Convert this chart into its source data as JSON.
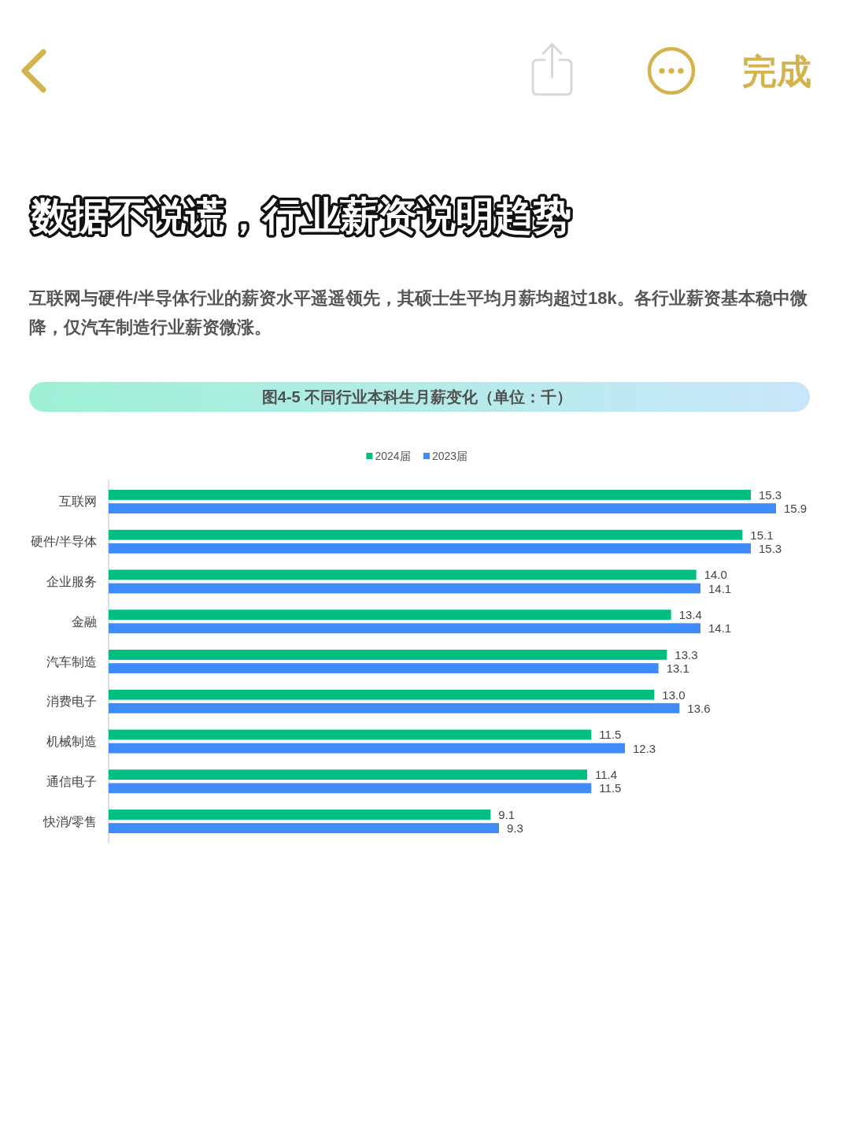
{
  "chart_data": {
    "type": "bar",
    "orientation": "horizontal",
    "title": "图4-5 不同行业本科生月薪变化（单位：千）",
    "annotations": [
      "数据不说谎，行业薪资说明趋势",
      "互联网与硬件/半导体行业的薪资水平遥遥领先，其硕士生平均月薪均超过18k。各行业薪资基本稳中微降，仅汽车制造行业薪资微涨。",
      "完成"
    ],
    "categories": [
      "互联网",
      "硬件/半导体",
      "企业服务",
      "金融",
      "汽车制造",
      "消费电子",
      "机械制造",
      "通信电子",
      "快消/零售"
    ],
    "series": [
      {
        "name": "2024届",
        "color": "#00be82",
        "values": [
          15.3,
          15.1,
          14.0,
          13.4,
          13.3,
          13.0,
          11.5,
          11.4,
          9.1
        ],
        "value_labels": [
          "15.3",
          "15.1",
          "14.0",
          "13.4",
          "13.3",
          "13.0",
          "11.5",
          "11.4",
          "9.1"
        ]
      },
      {
        "name": "2023届",
        "color": "#3f8bf9",
        "values": [
          15.9,
          15.3,
          14.1,
          14.1,
          13.1,
          13.6,
          12.3,
          11.5,
          9.3
        ],
        "value_labels": [
          "15.9",
          "15.3",
          "14.1",
          "14.1",
          "13.1",
          "13.6",
          "12.3",
          "11.5",
          "9.3"
        ]
      }
    ],
    "tick_labels": "y",
    "legend": "top"
  }
}
